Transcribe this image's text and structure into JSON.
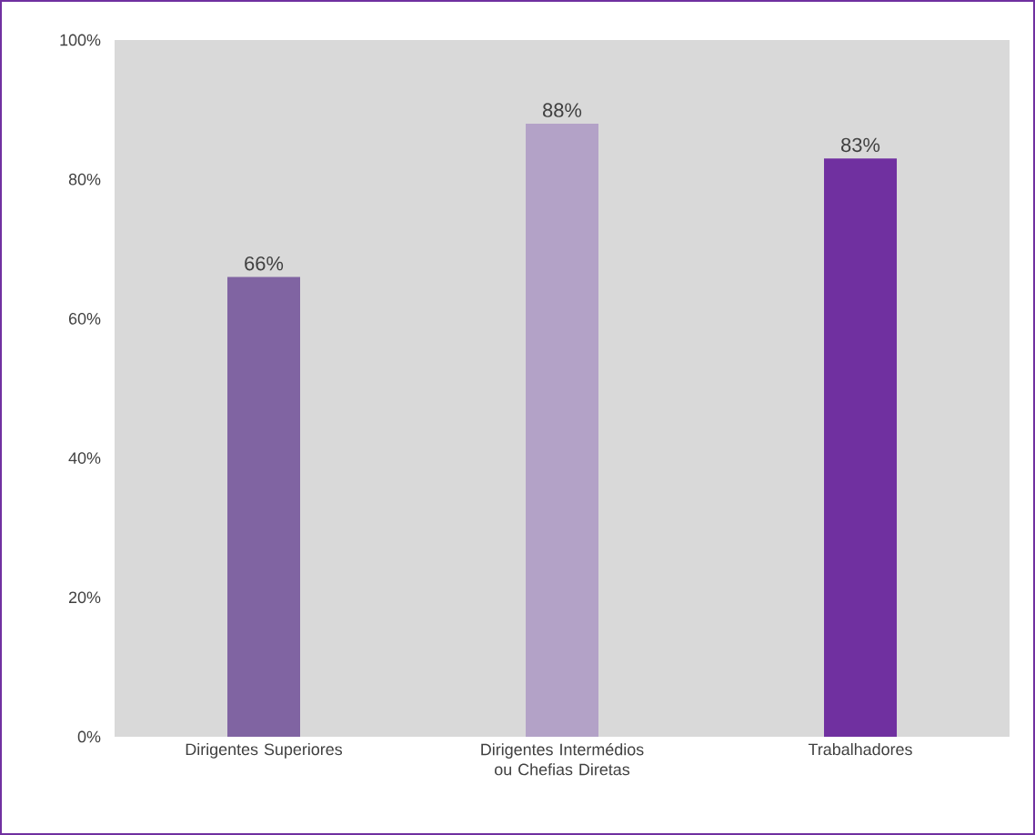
{
  "chart_data": {
    "type": "bar",
    "categories": [
      "Dirigentes Superiores",
      "Dirigentes Intermédios ou Chefias Diretas",
      "Trabalhadores"
    ],
    "values": [
      66,
      88,
      83
    ],
    "colors": [
      "#8064a2",
      "#b3a2c7",
      "#7030a0"
    ],
    "value_labels": [
      "66%",
      "88%",
      "83%"
    ],
    "ylim": [
      0,
      100
    ],
    "yticks": [
      {
        "value": 0,
        "label": "0%"
      },
      {
        "value": 20,
        "label": "20%"
      },
      {
        "value": 40,
        "label": "40%"
      },
      {
        "value": 60,
        "label": "60%"
      },
      {
        "value": 80,
        "label": "80%"
      },
      {
        "value": 100,
        "label": "100%"
      }
    ]
  }
}
